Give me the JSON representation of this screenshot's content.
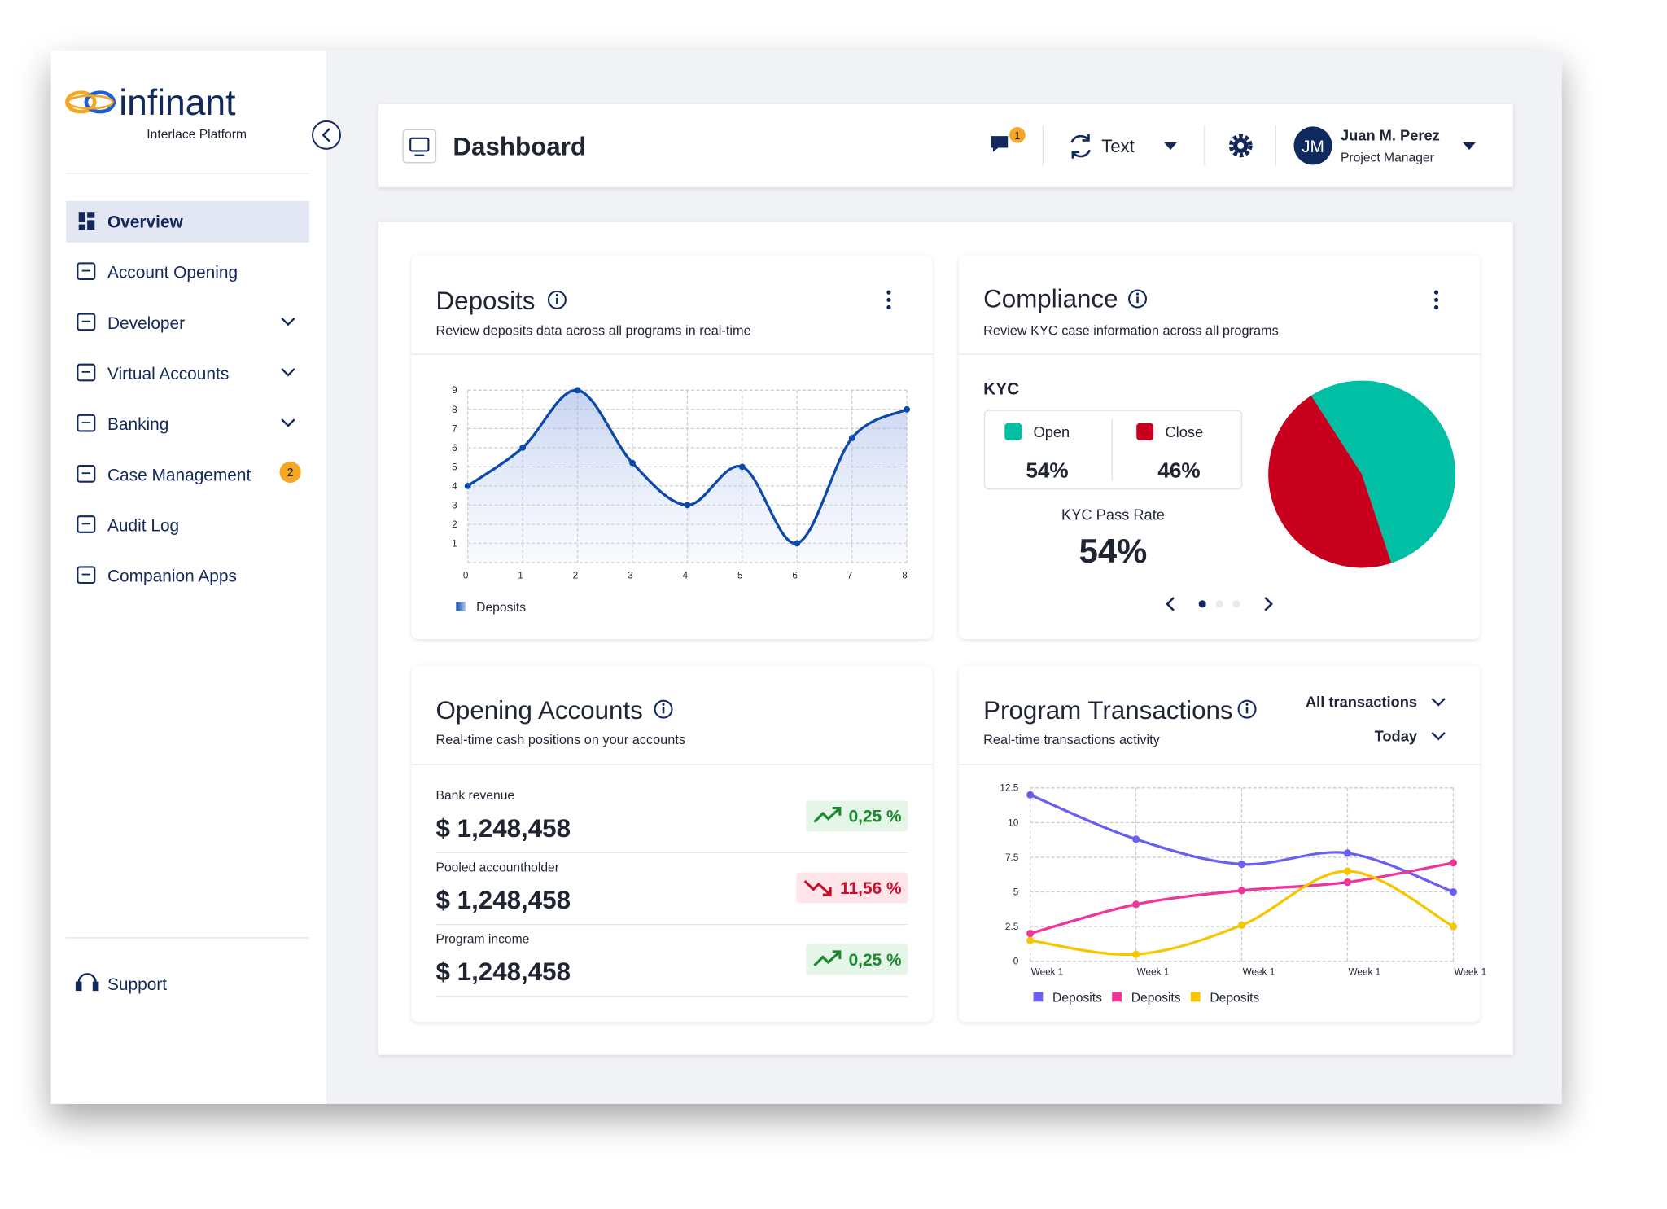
{
  "brand": {
    "name": "infinant",
    "subtitle": "Interlace Platform"
  },
  "nav": [
    {
      "label": "Overview",
      "active": true
    },
    {
      "label": "Account Opening"
    },
    {
      "label": "Developer",
      "expandable": true
    },
    {
      "label": "Virtual Accounts",
      "expandable": true
    },
    {
      "label": "Banking",
      "expandable": true
    },
    {
      "label": "Case Management",
      "badge": 2
    },
    {
      "label": "Audit Log"
    },
    {
      "label": "Companion Apps"
    }
  ],
  "support": "Support",
  "header": {
    "title": "Dashboard",
    "notification_count": 1,
    "selector": "Text",
    "user": {
      "initials": "JM",
      "name": "Juan M. Perez",
      "role": "Project Manager"
    }
  },
  "deposits": {
    "title": "Deposits",
    "subtitle": "Review deposits data across all programs in real-time",
    "chart": {
      "type": "line",
      "x": [
        0,
        1,
        2,
        3,
        4,
        5,
        6,
        7,
        8
      ],
      "series": [
        {
          "name": "Deposits",
          "color": "#0b4aa8",
          "values": [
            4,
            6,
            9,
            5.2,
            3,
            5,
            1,
            6.5,
            8
          ]
        }
      ],
      "xlim": [
        0,
        8
      ],
      "ylim": [
        0,
        9
      ],
      "xticks": [
        0,
        1,
        2,
        3,
        4,
        5,
        6,
        7,
        8
      ],
      "yticks": [
        1,
        2,
        3,
        4,
        5,
        6,
        7,
        8,
        9
      ],
      "grid": true
    }
  },
  "compliance": {
    "title": "Compliance",
    "subtitle": "Review KYC case information across all programs",
    "section": "KYC",
    "chart": {
      "type": "pie",
      "categories": [
        "Open",
        "Close"
      ],
      "values": [
        54,
        46
      ],
      "value_labels": [
        "54%",
        "46%"
      ],
      "colors": [
        "#00bfa5",
        "#c8001e"
      ]
    },
    "pass_rate_label": "KYC Pass Rate",
    "pass_rate": "54%"
  },
  "opening_accounts": {
    "title": "Opening Accounts",
    "subtitle": "Real-time cash positions on your accounts",
    "rows": [
      {
        "label": "Bank revenue",
        "amount": "$ 1,248,458",
        "change": "0,25 %",
        "trend": "up"
      },
      {
        "label": "Pooled accountholder",
        "amount": "$ 1,248,458",
        "change": "11,56 %",
        "trend": "down"
      },
      {
        "label": "Program income",
        "amount": "$ 1,248,458",
        "change": "0,25 %",
        "trend": "up"
      }
    ]
  },
  "program_transactions": {
    "title": "Program Transactions",
    "subtitle": "Real-time transactions activity",
    "filters": [
      "All transactions",
      "Today"
    ],
    "chart": {
      "type": "line",
      "categories": [
        "Week 1",
        "Week 1",
        "Week 1",
        "Week 1",
        "Week 1"
      ],
      "series": [
        {
          "name": "Deposits",
          "color": "#6a5ff0",
          "values": [
            12,
            8.8,
            7,
            7.8,
            5
          ]
        },
        {
          "name": "Deposits",
          "color": "#f0359a",
          "values": [
            2,
            4.1,
            5.1,
            5.7,
            7.1
          ]
        },
        {
          "name": "Deposits",
          "color": "#f7c600",
          "values": [
            1.5,
            0.5,
            2.6,
            6.5,
            2.5
          ]
        }
      ],
      "ylim": [
        0,
        12.5
      ],
      "yticks": [
        0,
        2.5,
        5,
        7.5,
        10,
        12.5
      ],
      "grid": true
    }
  }
}
